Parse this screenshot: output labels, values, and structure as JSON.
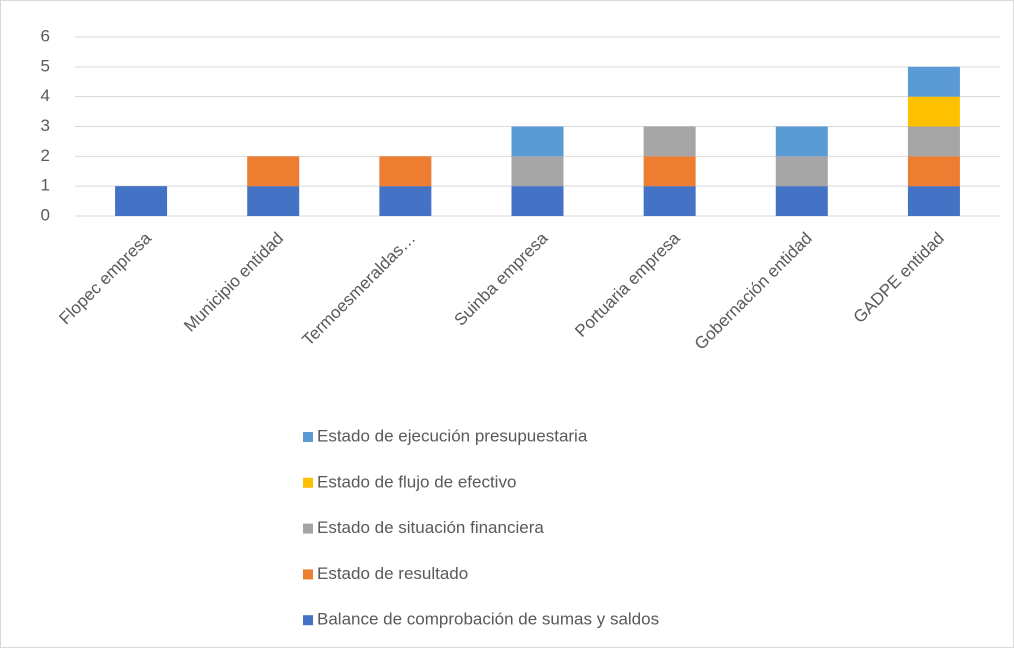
{
  "chart_data": {
    "type": "bar",
    "stacked": true,
    "categories": [
      "Flopec empresa",
      "Municipio entidad",
      "Termoesmeraldas…",
      "Suinba empresa",
      "Portuaria empresa",
      "Gobernación entidad",
      "GADPE entidad"
    ],
    "series": [
      {
        "name": "Balance de comprobación de sumas y saldos",
        "color": "#4472c4",
        "values": [
          1,
          1,
          1,
          1,
          1,
          1,
          1
        ]
      },
      {
        "name": "Estado de resultado",
        "color": "#ed7d31",
        "values": [
          0,
          1,
          1,
          0,
          1,
          0,
          1
        ]
      },
      {
        "name": "Estado de situación financiera",
        "color": "#a5a5a5",
        "values": [
          0,
          0,
          0,
          1,
          1,
          1,
          1
        ]
      },
      {
        "name": "Estado de flujo de efectivo",
        "color": "#ffc000",
        "values": [
          0,
          0,
          0,
          0,
          0,
          0,
          1
        ]
      },
      {
        "name": "Estado de ejecución presupuestaria",
        "color": "#5b9bd5",
        "values": [
          0,
          0,
          0,
          1,
          0,
          1,
          1
        ]
      }
    ],
    "ylim": [
      0,
      6
    ],
    "yticks": [
      0,
      1,
      2,
      3,
      4,
      5,
      6
    ],
    "grid": true,
    "legend": "bottom"
  }
}
